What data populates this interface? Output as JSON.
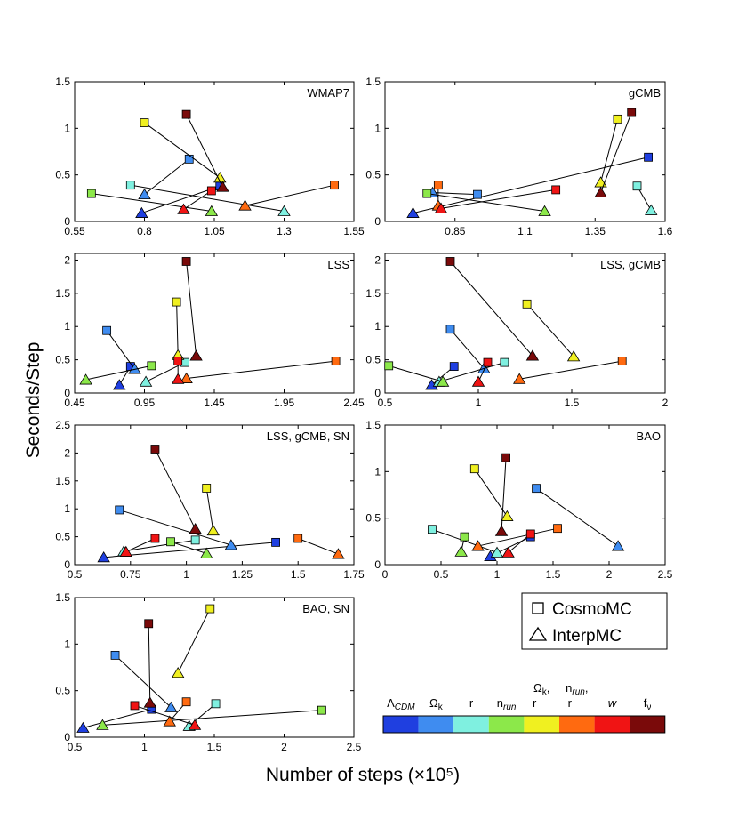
{
  "figure": {
    "xlabel": "Number of steps (×10⁵)",
    "ylabel": "Seconds/Step"
  },
  "legend": {
    "entries": [
      {
        "marker": "square",
        "label": "CosmoMC"
      },
      {
        "marker": "triangle",
        "label": "InterpMC"
      }
    ]
  },
  "colorbar": {
    "segments": [
      {
        "label": "Λᴄᴅᴍ",
        "label_main": "Λ",
        "label_sub": "CDM",
        "color": "#1f3fe0"
      },
      {
        "label": "Ωk",
        "label_main": "Ω",
        "label_sub": "k",
        "color": "#3f8cf0"
      },
      {
        "label": "r",
        "label_main": "r",
        "label_sub": "",
        "color": "#7ff0e0"
      },
      {
        "label": "n run",
        "label_main": "n",
        "label_sub": "run",
        "color": "#8ce84a"
      },
      {
        "label": "Ωk, r",
        "label_main": "Ω",
        "label_sub": "k",
        "label_extra": ",",
        "label_line2": "r",
        "color": "#f0f020"
      },
      {
        "label": "n run, r",
        "label_main": "n",
        "label_sub": "run",
        "label_extra": ",",
        "label_line2": "r",
        "color": "#ff6a10"
      },
      {
        "label": "w",
        "label_main": "w",
        "label_sub": "",
        "color": "#f01414"
      },
      {
        "label": "fν",
        "label_main": "f",
        "label_sub": "ν",
        "color": "#7a0a0a"
      }
    ]
  },
  "chart_data": [
    {
      "type": "scatter",
      "title": "WMAP7",
      "xlim": [
        0.55,
        1.55
      ],
      "ylim": [
        0,
        1.5
      ],
      "xticks": [
        0.55,
        0.8,
        1.05,
        1.3,
        1.55
      ],
      "xtick_labels": [
        "0.55",
        "0.8",
        "1.05",
        "1.3",
        "1.55"
      ],
      "yticks": [
        0,
        0.5,
        1,
        1.5
      ],
      "ytick_labels": [
        "0",
        "0.5",
        "1",
        "1.5"
      ],
      "pairs": [
        {
          "color_index": 0,
          "cosmomc": [
            1.07,
            0.38
          ],
          "interpmc": [
            0.79,
            0.09
          ]
        },
        {
          "color_index": 1,
          "cosmomc": [
            0.96,
            0.67
          ],
          "interpmc": [
            0.8,
            0.29
          ]
        },
        {
          "color_index": 2,
          "cosmomc": [
            0.75,
            0.39
          ],
          "interpmc": [
            1.3,
            0.11
          ]
        },
        {
          "color_index": 3,
          "cosmomc": [
            0.61,
            0.3
          ],
          "interpmc": [
            1.04,
            0.11
          ]
        },
        {
          "color_index": 4,
          "cosmomc": [
            0.8,
            1.06
          ],
          "interpmc": [
            1.07,
            0.47
          ]
        },
        {
          "color_index": 5,
          "cosmomc": [
            1.48,
            0.39
          ],
          "interpmc": [
            1.16,
            0.17
          ]
        },
        {
          "color_index": 6,
          "cosmomc": [
            1.04,
            0.33
          ],
          "interpmc": [
            0.94,
            0.13
          ]
        },
        {
          "color_index": 7,
          "cosmomc": [
            0.95,
            1.15
          ],
          "interpmc": [
            1.08,
            0.37
          ]
        }
      ]
    },
    {
      "type": "scatter",
      "title": "gCMB",
      "xlim": [
        0.6,
        1.6
      ],
      "ylim": [
        0,
        1.5
      ],
      "xticks": [
        0.85,
        1.1,
        1.35,
        1.6
      ],
      "xtick_labels": [
        "0.85",
        "1.1",
        "1.35",
        "1.6"
      ],
      "yticks": [
        0,
        0.5,
        1,
        1.5
      ],
      "ytick_labels": [
        "0",
        "0.5",
        "1",
        "1.5"
      ],
      "pairs": [
        {
          "color_index": 0,
          "cosmomc": [
            1.54,
            0.69
          ],
          "interpmc": [
            0.7,
            0.09
          ]
        },
        {
          "color_index": 1,
          "cosmomc": [
            0.93,
            0.29
          ],
          "interpmc": [
            0.77,
            0.31
          ]
        },
        {
          "color_index": 2,
          "cosmomc": [
            1.5,
            0.38
          ],
          "interpmc": [
            1.55,
            0.12
          ]
        },
        {
          "color_index": 3,
          "cosmomc": [
            0.75,
            0.3
          ],
          "interpmc": [
            1.17,
            0.11
          ]
        },
        {
          "color_index": 4,
          "cosmomc": [
            1.43,
            1.1
          ],
          "interpmc": [
            1.37,
            0.42
          ]
        },
        {
          "color_index": 5,
          "cosmomc": [
            0.79,
            0.39
          ],
          "interpmc": [
            0.79,
            0.17
          ]
        },
        {
          "color_index": 6,
          "cosmomc": [
            1.21,
            0.34
          ],
          "interpmc": [
            0.8,
            0.14
          ]
        },
        {
          "color_index": 7,
          "cosmomc": [
            1.48,
            1.17
          ],
          "interpmc": [
            1.37,
            0.31
          ]
        }
      ]
    },
    {
      "type": "scatter",
      "title": "LSS",
      "xlim": [
        0.45,
        2.45
      ],
      "ylim": [
        0,
        2.1
      ],
      "xticks": [
        0.45,
        0.95,
        1.45,
        1.95,
        2.45
      ],
      "xtick_labels": [
        "0.45",
        "0.95",
        "1.45",
        "1.95",
        "2.45"
      ],
      "yticks": [
        0,
        0.5,
        1,
        1.5,
        2
      ],
      "ytick_labels": [
        "0",
        "0.5",
        "1",
        "1.5",
        "2"
      ],
      "pairs": [
        {
          "color_index": 0,
          "cosmomc": [
            0.85,
            0.4
          ],
          "interpmc": [
            0.77,
            0.12
          ]
        },
        {
          "color_index": 1,
          "cosmomc": [
            0.68,
            0.94
          ],
          "interpmc": [
            0.88,
            0.36
          ]
        },
        {
          "color_index": 2,
          "cosmomc": [
            1.24,
            0.46
          ],
          "interpmc": [
            0.96,
            0.17
          ]
        },
        {
          "color_index": 3,
          "cosmomc": [
            1.0,
            0.41
          ],
          "interpmc": [
            0.53,
            0.2
          ]
        },
        {
          "color_index": 4,
          "cosmomc": [
            1.18,
            1.37
          ],
          "interpmc": [
            1.19,
            0.57
          ]
        },
        {
          "color_index": 5,
          "cosmomc": [
            2.32,
            0.48
          ],
          "interpmc": [
            1.25,
            0.22
          ]
        },
        {
          "color_index": 6,
          "cosmomc": [
            1.19,
            0.48
          ],
          "interpmc": [
            1.19,
            0.21
          ]
        },
        {
          "color_index": 7,
          "cosmomc": [
            1.25,
            1.98
          ],
          "interpmc": [
            1.32,
            0.56
          ]
        }
      ]
    },
    {
      "type": "scatter",
      "title": "LSS, gCMB",
      "xlim": [
        0.5,
        2
      ],
      "ylim": [
        0,
        2.1
      ],
      "xticks": [
        0.5,
        1,
        1.5,
        2
      ],
      "xtick_labels": [
        "0.5",
        "1",
        "1.5",
        "2"
      ],
      "yticks": [
        0,
        0.5,
        1,
        1.5,
        2
      ],
      "ytick_labels": [
        "0",
        "0.5",
        "1",
        "1.5",
        "2"
      ],
      "pairs": [
        {
          "color_index": 0,
          "cosmomc": [
            0.87,
            0.4
          ],
          "interpmc": [
            0.75,
            0.12
          ]
        },
        {
          "color_index": 1,
          "cosmomc": [
            0.85,
            0.96
          ],
          "interpmc": [
            1.03,
            0.37
          ]
        },
        {
          "color_index": 2,
          "cosmomc": [
            1.14,
            0.46
          ],
          "interpmc": [
            0.79,
            0.17
          ]
        },
        {
          "color_index": 3,
          "cosmomc": [
            0.52,
            0.41
          ],
          "interpmc": [
            0.81,
            0.17
          ]
        },
        {
          "color_index": 4,
          "cosmomc": [
            1.26,
            1.34
          ],
          "interpmc": [
            1.51,
            0.55
          ]
        },
        {
          "color_index": 5,
          "cosmomc": [
            1.77,
            0.48
          ],
          "interpmc": [
            1.22,
            0.21
          ]
        },
        {
          "color_index": 6,
          "cosmomc": [
            1.05,
            0.46
          ],
          "interpmc": [
            1.0,
            0.17
          ]
        },
        {
          "color_index": 7,
          "cosmomc": [
            0.85,
            1.98
          ],
          "interpmc": [
            1.29,
            0.56
          ]
        }
      ]
    },
    {
      "type": "scatter",
      "title": "LSS, gCMB, SN",
      "xlim": [
        0.5,
        1.75
      ],
      "ylim": [
        0,
        2.5
      ],
      "xticks": [
        0.5,
        0.75,
        1,
        1.25,
        1.5,
        1.75
      ],
      "xtick_labels": [
        "0.5",
        "0.75",
        "1",
        "1.25",
        "1.5",
        "1.75"
      ],
      "yticks": [
        0,
        0.5,
        1,
        1.5,
        2,
        2.5
      ],
      "ytick_labels": [
        "0",
        "0.5",
        "1",
        "1.5",
        "2",
        "2.5"
      ],
      "pairs": [
        {
          "color_index": 0,
          "cosmomc": [
            1.4,
            0.4
          ],
          "interpmc": [
            0.63,
            0.13
          ]
        },
        {
          "color_index": 1,
          "cosmomc": [
            0.7,
            0.98
          ],
          "interpmc": [
            1.2,
            0.35
          ]
        },
        {
          "color_index": 2,
          "cosmomc": [
            1.04,
            0.44
          ],
          "interpmc": [
            0.72,
            0.24
          ]
        },
        {
          "color_index": 3,
          "cosmomc": [
            0.93,
            0.41
          ],
          "interpmc": [
            1.09,
            0.2
          ]
        },
        {
          "color_index": 4,
          "cosmomc": [
            1.09,
            1.37
          ],
          "interpmc": [
            1.12,
            0.61
          ]
        },
        {
          "color_index": 5,
          "cosmomc": [
            1.5,
            0.47
          ],
          "interpmc": [
            1.68,
            0.19
          ]
        },
        {
          "color_index": 6,
          "cosmomc": [
            0.86,
            0.47
          ],
          "interpmc": [
            0.73,
            0.23
          ]
        },
        {
          "color_index": 7,
          "cosmomc": [
            0.86,
            2.07
          ],
          "interpmc": [
            1.04,
            0.64
          ]
        }
      ]
    },
    {
      "type": "scatter",
      "title": "BAO",
      "xlim": [
        0,
        2.5
      ],
      "ylim": [
        0,
        1.5
      ],
      "xticks": [
        0,
        0.5,
        1,
        1.5,
        2,
        2.5
      ],
      "xtick_labels": [
        "0",
        "0.5",
        "1",
        "1.5",
        "2",
        "2.5"
      ],
      "yticks": [
        0,
        0.5,
        1,
        1.5
      ],
      "ytick_labels": [
        "0",
        "0.5",
        "1",
        "1.5"
      ],
      "pairs": [
        {
          "color_index": 0,
          "cosmomc": [
            1.3,
            0.3
          ],
          "interpmc": [
            0.94,
            0.09
          ]
        },
        {
          "color_index": 1,
          "cosmomc": [
            1.35,
            0.82
          ],
          "interpmc": [
            2.08,
            0.2
          ]
        },
        {
          "color_index": 2,
          "cosmomc": [
            0.42,
            0.38
          ],
          "interpmc": [
            1.0,
            0.13
          ]
        },
        {
          "color_index": 3,
          "cosmomc": [
            0.71,
            0.3
          ],
          "interpmc": [
            0.68,
            0.14
          ]
        },
        {
          "color_index": 4,
          "cosmomc": [
            0.8,
            1.03
          ],
          "interpmc": [
            1.09,
            0.52
          ]
        },
        {
          "color_index": 5,
          "cosmomc": [
            1.54,
            0.39
          ],
          "interpmc": [
            0.83,
            0.2
          ]
        },
        {
          "color_index": 6,
          "cosmomc": [
            1.3,
            0.33
          ],
          "interpmc": [
            1.1,
            0.13
          ]
        },
        {
          "color_index": 7,
          "cosmomc": [
            1.08,
            1.15
          ],
          "interpmc": [
            1.04,
            0.36
          ]
        }
      ]
    },
    {
      "type": "scatter",
      "title": "BAO, SN",
      "xlim": [
        0.5,
        2.5
      ],
      "ylim": [
        0,
        1.5
      ],
      "xticks": [
        0.5,
        1,
        1.5,
        2,
        2.5
      ],
      "xtick_labels": [
        "0.5",
        "1",
        "1.5",
        "2",
        "2.5"
      ],
      "yticks": [
        0,
        0.5,
        1,
        1.5
      ],
      "ytick_labels": [
        "0",
        "0.5",
        "1",
        "1.5"
      ],
      "pairs": [
        {
          "color_index": 0,
          "cosmomc": [
            1.05,
            0.3
          ],
          "interpmc": [
            0.56,
            0.1
          ]
        },
        {
          "color_index": 1,
          "cosmomc": [
            0.79,
            0.88
          ],
          "interpmc": [
            1.19,
            0.32
          ]
        },
        {
          "color_index": 2,
          "cosmomc": [
            1.51,
            0.36
          ],
          "interpmc": [
            1.32,
            0.12
          ]
        },
        {
          "color_index": 3,
          "cosmomc": [
            2.27,
            0.29
          ],
          "interpmc": [
            0.7,
            0.13
          ]
        },
        {
          "color_index": 4,
          "cosmomc": [
            1.47,
            1.38
          ],
          "interpmc": [
            1.24,
            0.69
          ]
        },
        {
          "color_index": 5,
          "cosmomc": [
            1.3,
            0.38
          ],
          "interpmc": [
            1.18,
            0.17
          ]
        },
        {
          "color_index": 6,
          "cosmomc": [
            0.93,
            0.34
          ],
          "interpmc": [
            1.36,
            0.13
          ]
        },
        {
          "color_index": 7,
          "cosmomc": [
            1.03,
            1.22
          ],
          "interpmc": [
            1.04,
            0.37
          ]
        }
      ]
    }
  ]
}
